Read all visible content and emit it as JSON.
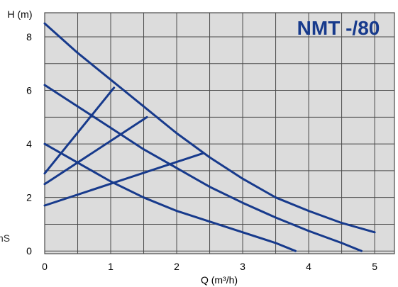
{
  "chart_data": {
    "type": "line",
    "title": "NMT -/80",
    "xlabel": "Q (m³/h)",
    "ylabel": "H (m)",
    "xlim": [
      0,
      5.3
    ],
    "ylim": [
      -0.1,
      8.9
    ],
    "grid": true,
    "x_ticks": [
      0,
      0.5,
      1,
      1.5,
      2,
      2.5,
      3,
      3.5,
      4,
      4.5,
      5
    ],
    "y_ticks": [
      0,
      1,
      2,
      3,
      4,
      5,
      6,
      7,
      8
    ],
    "x_tick_labels": [
      "0",
      "1",
      "2",
      "3",
      "4",
      "5"
    ],
    "x_tick_label_values": [
      0,
      1,
      2,
      3,
      4,
      5
    ],
    "y_tick_labels": [
      "0",
      "2",
      "4",
      "6",
      "8"
    ],
    "y_tick_label_values": [
      0,
      2,
      4,
      6,
      8
    ],
    "series": [
      {
        "x": [
          0,
          0.5,
          1,
          1.5,
          2,
          2.5,
          3,
          3.5,
          4,
          4.5,
          5
        ],
        "y": [
          8.5,
          7.4,
          6.4,
          5.4,
          4.4,
          3.5,
          2.7,
          2.0,
          1.5,
          1.05,
          0.7
        ]
      },
      {
        "x": [
          0,
          0.5,
          1,
          1.5,
          2,
          2.5,
          3,
          3.5,
          4,
          4.5,
          4.8
        ],
        "y": [
          6.2,
          5.4,
          4.6,
          3.8,
          3.1,
          2.4,
          1.8,
          1.25,
          0.75,
          0.3,
          0
        ]
      },
      {
        "x": [
          0,
          0.5,
          1,
          1.5,
          2,
          2.5,
          3,
          3.5,
          3.8
        ],
        "y": [
          4.0,
          3.3,
          2.6,
          2.0,
          1.5,
          1.1,
          0.7,
          0.3,
          0
        ]
      },
      {
        "x": [
          0,
          1.05
        ],
        "y": [
          2.9,
          6.1
        ]
      },
      {
        "x": [
          0,
          1.55
        ],
        "y": [
          2.5,
          5.0
        ]
      },
      {
        "x": [
          0,
          2.4
        ],
        "y": [
          1.7,
          3.65
        ]
      }
    ],
    "line_color": "#173a8c",
    "grid_color": "#4a4a4a",
    "plot_background": "#dcdcdc",
    "title_color": "#173a8c"
  },
  "edge_text": "nS"
}
